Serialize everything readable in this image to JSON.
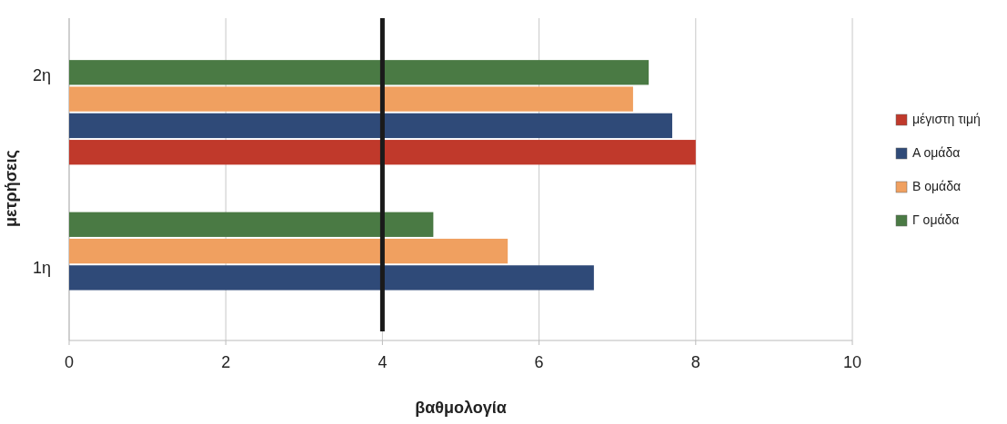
{
  "chart_data": {
    "type": "bar",
    "orientation": "horizontal",
    "xlabel": "βαθμολογία",
    "ylabel": "μετρήσεις",
    "categories": [
      "2η",
      "1η"
    ],
    "series": [
      {
        "name": "Γ ομάδα",
        "color": "#4a7a44",
        "values": [
          7.4,
          4.65
        ]
      },
      {
        "name": "Β ομάδα",
        "color": "#f0a060",
        "values": [
          7.2,
          5.6
        ]
      },
      {
        "name": "Α ομάδα",
        "color": "#2f4a78",
        "values": [
          7.7,
          6.7
        ]
      },
      {
        "name": "μέγιστη τιμή",
        "color": "#c0392b",
        "values": [
          8,
          null
        ]
      }
    ],
    "xlim": [
      0,
      10
    ],
    "xticks": [
      0,
      2,
      4,
      6,
      8,
      10
    ],
    "grid": "x",
    "legend": "right",
    "ref_lines": [
      {
        "axis": "x",
        "value": 4,
        "color": "#1a1a1a"
      }
    ]
  }
}
